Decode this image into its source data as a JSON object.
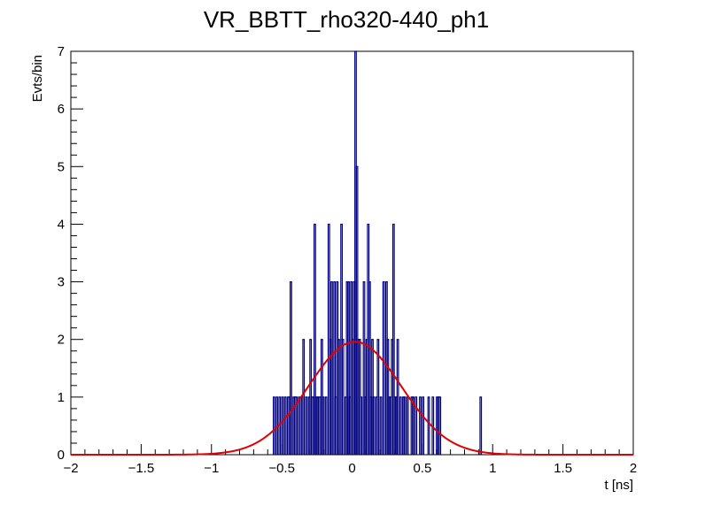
{
  "chart_data": {
    "type": "histogram",
    "title": "VR_BBTT_rho320-440_ph1",
    "xlabel": "t [ns]",
    "ylabel": "Evts/bin",
    "xlim": [
      -2,
      2
    ],
    "ylim": [
      0,
      7
    ],
    "x_ticks": [
      -2,
      -1.5,
      -1,
      -0.5,
      0,
      0.5,
      1,
      1.5,
      2
    ],
    "x_tick_labels": [
      "−2",
      "−1.5",
      "−1",
      "−0.5",
      "0",
      "0.5",
      "1",
      "1.5",
      "2"
    ],
    "y_ticks": [
      0,
      1,
      2,
      3,
      4,
      5,
      6,
      7
    ],
    "y_tick_labels": [
      "0",
      "1",
      "2",
      "3",
      "4",
      "5",
      "6",
      "7"
    ],
    "grid": false,
    "bin_width": 0.01,
    "histogram": {
      "color": "#000080",
      "bins": [
        [
          -0.56,
          1
        ],
        [
          -0.54,
          1
        ],
        [
          -0.52,
          1
        ],
        [
          -0.5,
          1
        ],
        [
          -0.48,
          1
        ],
        [
          -0.46,
          1
        ],
        [
          -0.45,
          1
        ],
        [
          -0.44,
          3
        ],
        [
          -0.42,
          1
        ],
        [
          -0.41,
          1
        ],
        [
          -0.4,
          1
        ],
        [
          -0.38,
          1
        ],
        [
          -0.36,
          1
        ],
        [
          -0.35,
          2
        ],
        [
          -0.33,
          1
        ],
        [
          -0.31,
          1
        ],
        [
          -0.3,
          2
        ],
        [
          -0.29,
          1
        ],
        [
          -0.28,
          1
        ],
        [
          -0.27,
          4
        ],
        [
          -0.26,
          1
        ],
        [
          -0.25,
          1
        ],
        [
          -0.24,
          1
        ],
        [
          -0.23,
          1
        ],
        [
          -0.22,
          2
        ],
        [
          -0.21,
          1
        ],
        [
          -0.19,
          1
        ],
        [
          -0.17,
          4
        ],
        [
          -0.16,
          2
        ],
        [
          -0.15,
          3
        ],
        [
          -0.13,
          3
        ],
        [
          -0.12,
          1
        ],
        [
          -0.11,
          3
        ],
        [
          -0.1,
          2
        ],
        [
          -0.08,
          4
        ],
        [
          -0.07,
          2
        ],
        [
          -0.05,
          1
        ],
        [
          -0.04,
          3
        ],
        [
          -0.03,
          3
        ],
        [
          -0.02,
          1
        ],
        [
          -0.01,
          3
        ],
        [
          0.0,
          2
        ],
        [
          0.01,
          3
        ],
        [
          0.02,
          7
        ],
        [
          0.03,
          5
        ],
        [
          0.04,
          2
        ],
        [
          0.05,
          2
        ],
        [
          0.06,
          1
        ],
        [
          0.08,
          3
        ],
        [
          0.09,
          1
        ],
        [
          0.1,
          2
        ],
        [
          0.11,
          4
        ],
        [
          0.12,
          3
        ],
        [
          0.13,
          1
        ],
        [
          0.14,
          2
        ],
        [
          0.15,
          1
        ],
        [
          0.17,
          1
        ],
        [
          0.18,
          2
        ],
        [
          0.2,
          1
        ],
        [
          0.22,
          3
        ],
        [
          0.24,
          3
        ],
        [
          0.25,
          2
        ],
        [
          0.26,
          1
        ],
        [
          0.27,
          1
        ],
        [
          0.28,
          2
        ],
        [
          0.29,
          4
        ],
        [
          0.3,
          1
        ],
        [
          0.31,
          1
        ],
        [
          0.32,
          2
        ],
        [
          0.34,
          1
        ],
        [
          0.36,
          1
        ],
        [
          0.37,
          1
        ],
        [
          0.39,
          1
        ],
        [
          0.42,
          1
        ],
        [
          0.43,
          1
        ],
        [
          0.45,
          1
        ],
        [
          0.48,
          1
        ],
        [
          0.5,
          1
        ],
        [
          0.54,
          1
        ],
        [
          0.57,
          1
        ],
        [
          0.6,
          1
        ],
        [
          0.61,
          1
        ],
        [
          0.62,
          1
        ],
        [
          0.91,
          1
        ]
      ]
    },
    "fit": {
      "type": "gaussian",
      "color": "#e00000",
      "amplitude": 1.96,
      "mean": 0.02,
      "sigma": 0.33
    }
  }
}
